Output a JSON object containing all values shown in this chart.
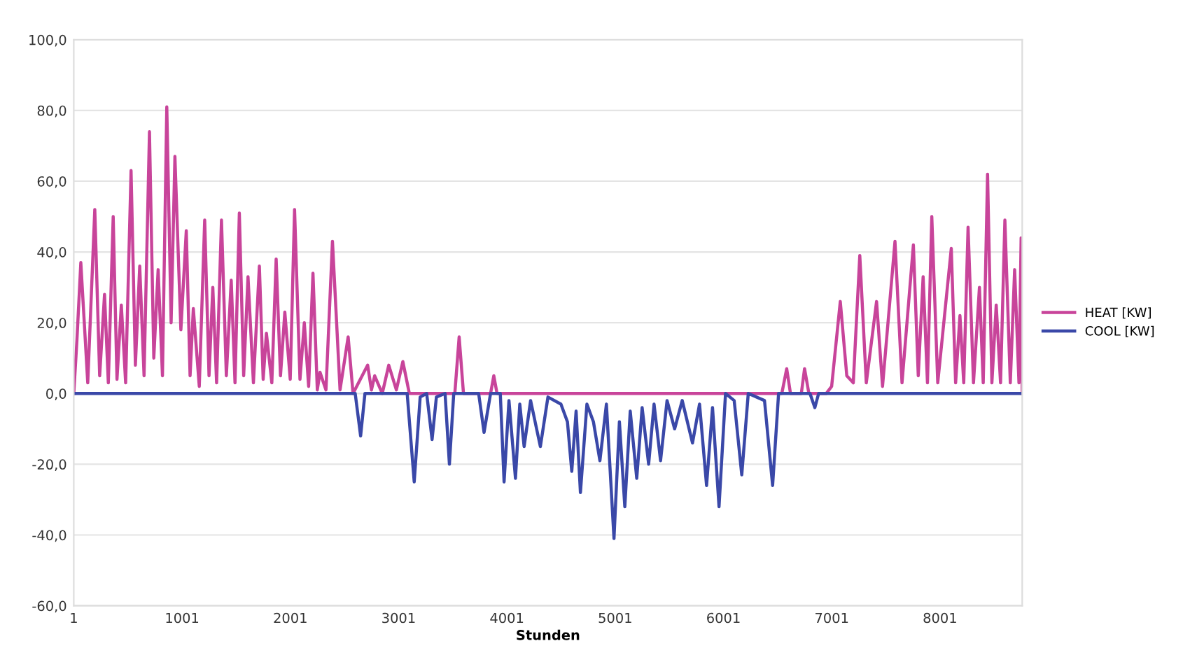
{
  "chart_data": {
    "type": "line",
    "xlabel": "Stunden",
    "xlim": [
      1,
      8760
    ],
    "xticks": [
      1,
      1001,
      2001,
      3001,
      4001,
      5001,
      6001,
      7001,
      8001
    ],
    "ylim": [
      -60,
      100
    ],
    "yticks": [
      {
        "value": -60,
        "label": "-60,0"
      },
      {
        "value": -40,
        "label": "-40,0"
      },
      {
        "value": -20,
        "label": "-20,0"
      },
      {
        "value": 0,
        "label": "0,0"
      },
      {
        "value": 20,
        "label": "20,0"
      },
      {
        "value": 40,
        "label": "40,0"
      },
      {
        "value": 60,
        "label": "60,0"
      },
      {
        "value": 80,
        "label": "80,0"
      },
      {
        "value": 100,
        "label": "100,0"
      }
    ],
    "grid": "y",
    "legend": "right",
    "marker": "none",
    "line_style": "solid",
    "series": [
      {
        "name": "HEAT [KW]",
        "color": "#c8449a",
        "x": [
          1,
          30,
          66,
          130,
          195,
          240,
          285,
          320,
          365,
          400,
          440,
          480,
          530,
          570,
          610,
          650,
          700,
          740,
          780,
          820,
          860,
          900,
          935,
          990,
          1040,
          1075,
          1105,
          1160,
          1210,
          1250,
          1285,
          1320,
          1365,
          1410,
          1455,
          1490,
          1530,
          1570,
          1610,
          1660,
          1715,
          1750,
          1780,
          1830,
          1870,
          1910,
          1950,
          2000,
          2040,
          2090,
          2130,
          2170,
          2210,
          2250,
          2275,
          2330,
          2390,
          2460,
          2535,
          2580,
          2715,
          2750,
          2780,
          2850,
          2910,
          2980,
          3040,
          3100,
          3520,
          3560,
          3600,
          3850,
          3880,
          3910,
          6540,
          6585,
          6620,
          6720,
          6750,
          6790,
          6950,
          7000,
          7080,
          7140,
          7200,
          7260,
          7320,
          7415,
          7470,
          7585,
          7650,
          7755,
          7800,
          7845,
          7885,
          7925,
          7980,
          8105,
          8145,
          8185,
          8220,
          8260,
          8310,
          8365,
          8400,
          8440,
          8480,
          8520,
          8560,
          8600,
          8650,
          8690,
          8730,
          8750,
          8760
        ],
        "values": [
          0,
          15,
          37,
          3,
          52,
          5,
          28,
          3,
          50,
          4,
          25,
          3,
          63,
          8,
          36,
          5,
          74,
          10,
          35,
          5,
          81,
          20,
          67,
          18,
          46,
          5,
          24,
          2,
          49,
          5,
          30,
          3,
          49,
          5,
          32,
          3,
          51,
          5,
          33,
          3,
          36,
          4,
          17,
          3,
          38,
          5,
          23,
          4,
          52,
          4,
          20,
          2,
          34,
          1,
          6,
          1,
          43,
          1,
          16,
          0,
          8,
          1,
          5,
          0,
          8,
          1,
          9,
          0,
          0,
          16,
          0,
          0,
          5,
          0,
          0,
          7,
          0,
          0,
          7,
          0,
          0,
          2,
          26,
          5,
          3,
          39,
          3,
          26,
          2,
          43,
          3,
          42,
          5,
          33,
          3,
          50,
          3,
          41,
          3,
          22,
          3,
          47,
          3,
          30,
          3,
          62,
          3,
          25,
          3,
          49,
          3,
          35,
          3,
          44,
          0
        ]
      },
      {
        "name": "COOL [KW]",
        "color": "#3a48a8",
        "x": [
          1,
          2600,
          2650,
          2690,
          3080,
          3145,
          3200,
          3260,
          3310,
          3350,
          3430,
          3470,
          3510,
          3740,
          3790,
          3850,
          3940,
          3975,
          4020,
          4080,
          4120,
          4160,
          4220,
          4310,
          4380,
          4500,
          4560,
          4600,
          4640,
          4680,
          4740,
          4800,
          4860,
          4920,
          4990,
          5040,
          5090,
          5140,
          5200,
          5250,
          5310,
          5360,
          5420,
          5480,
          5550,
          5620,
          5715,
          5780,
          5845,
          5900,
          5960,
          6020,
          6100,
          6170,
          6230,
          6380,
          6455,
          6510,
          6800,
          6845,
          6880,
          8760
        ],
        "values": [
          0,
          0,
          -12,
          0,
          0,
          -25,
          -1,
          0,
          -13,
          -1,
          0,
          -20,
          0,
          0,
          -11,
          0,
          0,
          -25,
          -2,
          -24,
          -3,
          -15,
          -2,
          -15,
          -1,
          -3,
          -8,
          -22,
          -5,
          -28,
          -3,
          -8,
          -19,
          -3,
          -41,
          -8,
          -32,
          -5,
          -24,
          -4,
          -20,
          -3,
          -19,
          -2,
          -10,
          -2,
          -14,
          -3,
          -26,
          -4,
          -32,
          0,
          -2,
          -23,
          0,
          -2,
          -26,
          0,
          0,
          -4,
          0,
          0
        ]
      }
    ]
  }
}
